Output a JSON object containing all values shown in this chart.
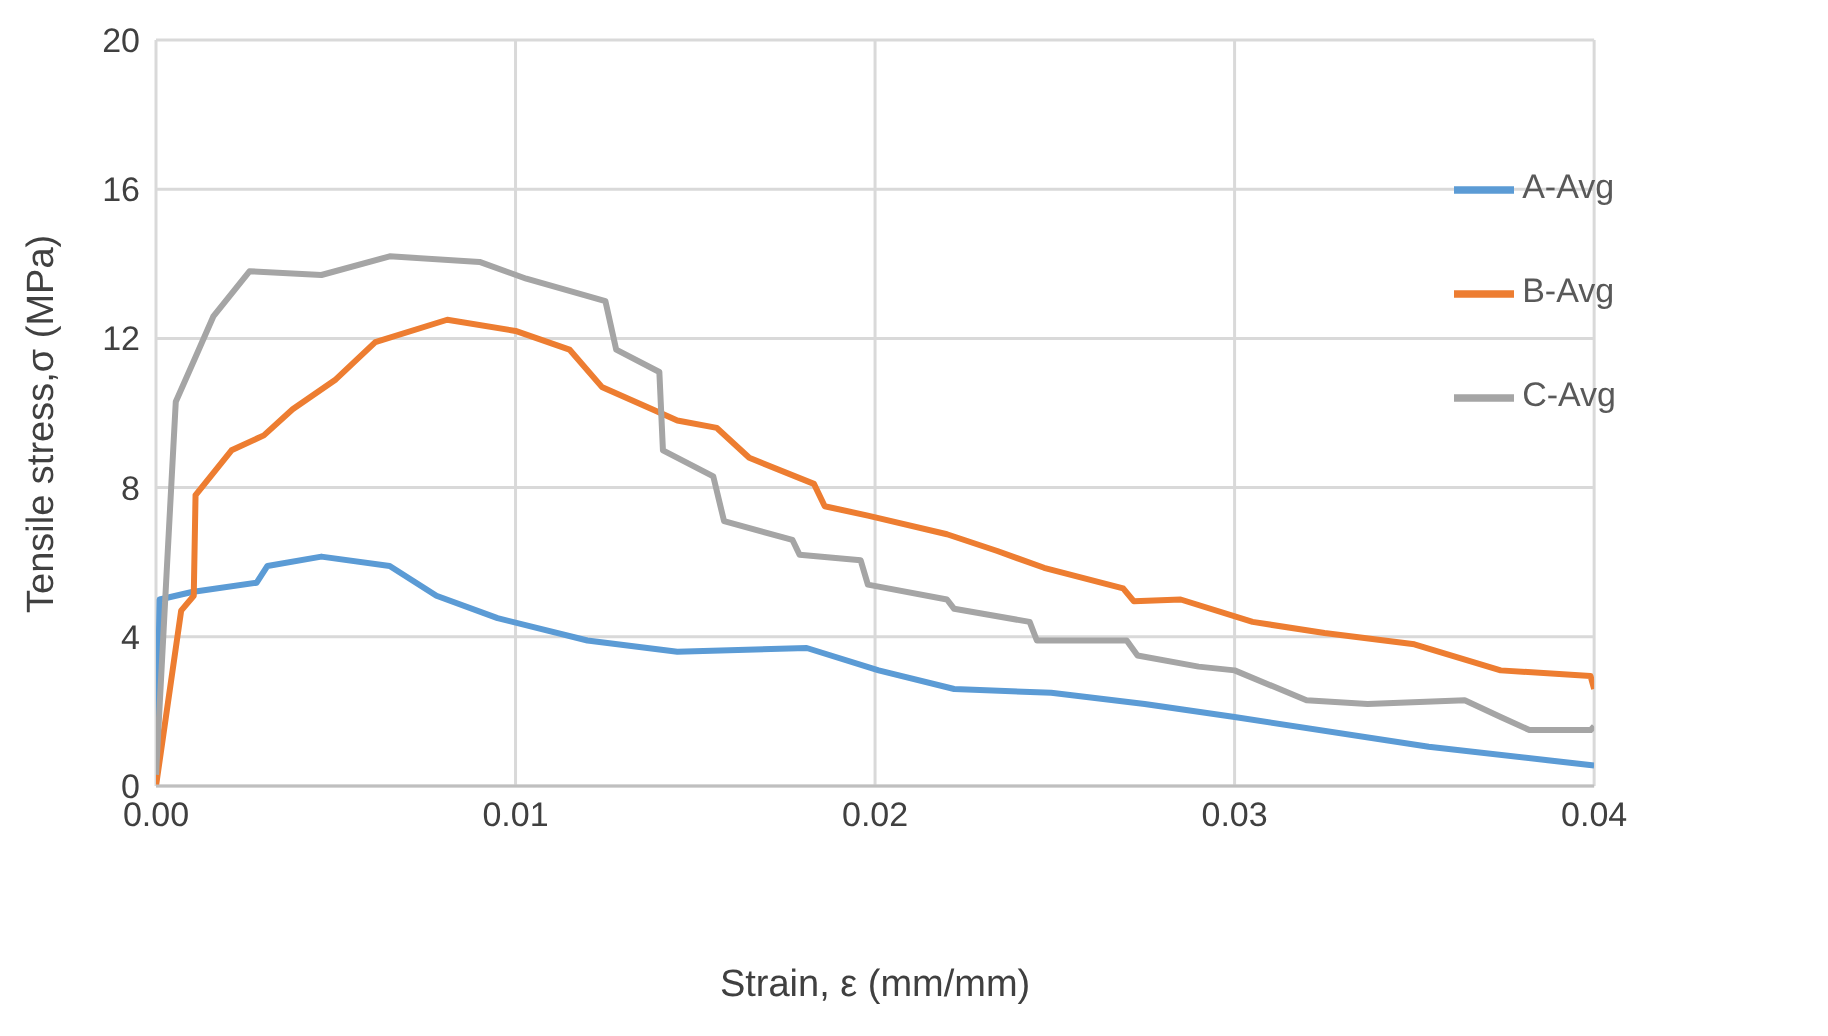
{
  "chart_data": {
    "type": "line",
    "xlabel": "Strain, ε (mm/mm)",
    "ylabel": "Tensile stress,σ (MPa)",
    "xlim": [
      0,
      0.04
    ],
    "xticks": [
      {
        "value": 0,
        "label": "0.00"
      },
      {
        "value": 0.01,
        "label": "0.01"
      },
      {
        "value": 0.02,
        "label": "0.02"
      },
      {
        "value": 0.03,
        "label": "0.03"
      },
      {
        "value": 0.04,
        "label": "0.04"
      }
    ],
    "ylim": [
      0,
      20
    ],
    "yticks": [
      0,
      4,
      8,
      12,
      16,
      20
    ],
    "grid": true,
    "legend": "right",
    "marker": "none",
    "line_style": "solid",
    "series": [
      {
        "name": "A-Avg",
        "color": "#5b9bd5",
        "x": [
          0,
          0.0001,
          0.001,
          0.0028,
          0.0031,
          0.0046,
          0.0065,
          0.0078,
          0.0095,
          0.012,
          0.0145,
          0.0181,
          0.0201,
          0.0222,
          0.0249,
          0.0275,
          0.03,
          0.0354,
          0.04
        ],
        "values": [
          0,
          5.0,
          5.2,
          5.45,
          5.9,
          6.15,
          5.9,
          5.1,
          4.5,
          3.9,
          3.6,
          3.7,
          3.1,
          2.6,
          2.5,
          2.2,
          1.85,
          1.05,
          0.55
        ]
      },
      {
        "name": "B-Avg",
        "color": "#ed7d31",
        "x": [
          0,
          0.0007,
          0.00105,
          0.0011,
          0.0021,
          0.003,
          0.0038,
          0.005,
          0.0061,
          0.0081,
          0.01,
          0.0115,
          0.0124,
          0.0138,
          0.0145,
          0.0156,
          0.0165,
          0.0183,
          0.0186,
          0.0198,
          0.022,
          0.0234,
          0.0247,
          0.0269,
          0.0272,
          0.0285,
          0.0305,
          0.0325,
          0.035,
          0.0374,
          0.0399,
          0.04
        ],
        "values": [
          0,
          4.7,
          5.1,
          7.8,
          9.0,
          9.4,
          10.1,
          10.9,
          11.9,
          12.5,
          12.2,
          11.7,
          10.7,
          10.1,
          9.8,
          9.6,
          8.8,
          8.1,
          7.5,
          7.25,
          6.75,
          6.3,
          5.85,
          5.3,
          4.95,
          5.0,
          4.4,
          4.1,
          3.8,
          3.1,
          2.95,
          2.6
        ]
      },
      {
        "name": "C-Avg",
        "color": "#a5a5a5",
        "x": [
          0,
          0.0003,
          0.00055,
          0.0011,
          0.0016,
          0.0026,
          0.0046,
          0.0065,
          0.009,
          0.0103,
          0.0125,
          0.0128,
          0.014,
          0.0141,
          0.0155,
          0.0158,
          0.0177,
          0.0179,
          0.0196,
          0.0198,
          0.022,
          0.0222,
          0.0243,
          0.0245,
          0.027,
          0.0273,
          0.029,
          0.03,
          0.032,
          0.0337,
          0.0364,
          0.0374,
          0.0382,
          0.0399,
          0.04
        ],
        "values": [
          0.3,
          5.8,
          10.3,
          11.5,
          12.6,
          13.8,
          13.7,
          14.2,
          14.05,
          13.6,
          13.0,
          11.7,
          11.1,
          9.0,
          8.3,
          7.1,
          6.6,
          6.2,
          6.05,
          5.4,
          5.0,
          4.75,
          4.4,
          3.9,
          3.9,
          3.5,
          3.2,
          3.1,
          2.3,
          2.2,
          2.3,
          1.85,
          1.5,
          1.5,
          1.6
        ]
      }
    ]
  }
}
